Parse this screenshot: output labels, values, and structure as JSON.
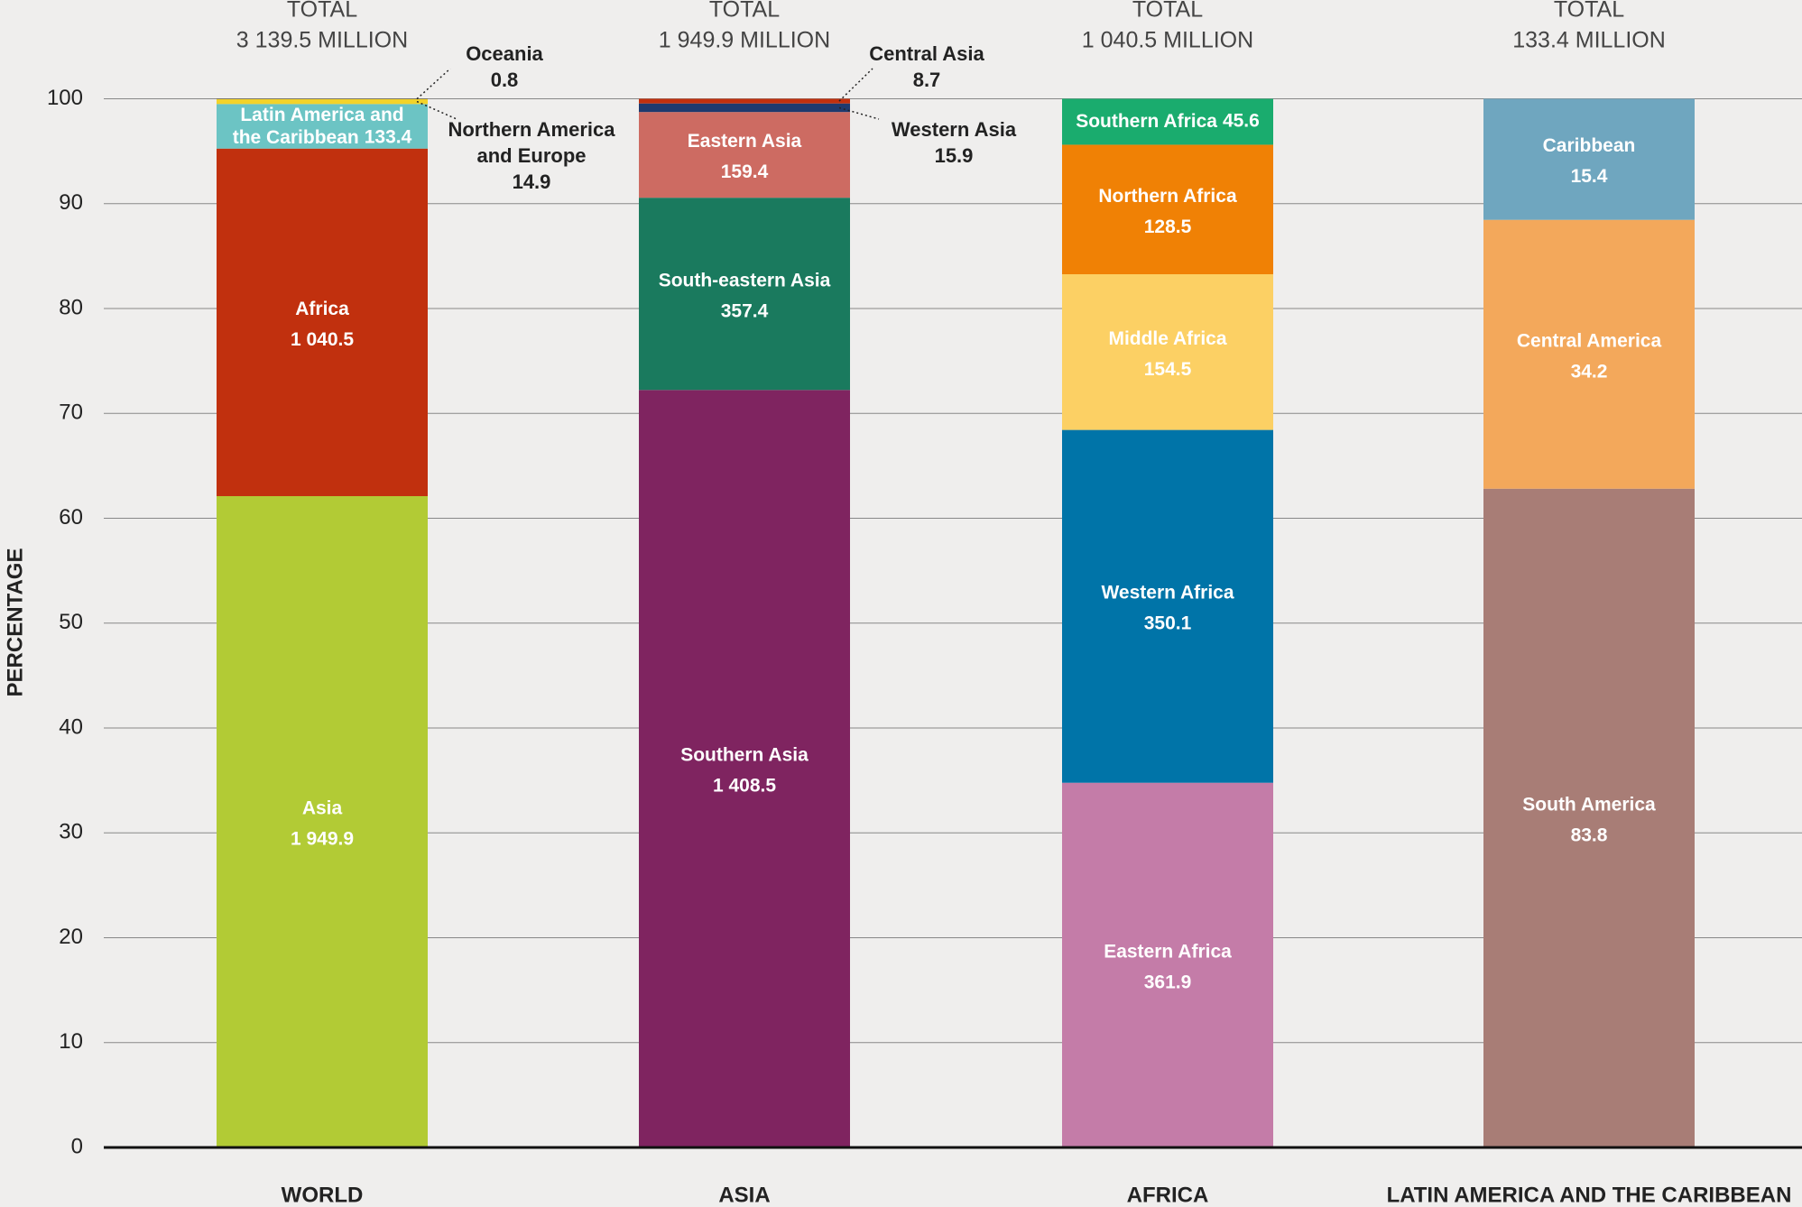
{
  "chart_data": {
    "type": "bar",
    "stacked": true,
    "percent": true,
    "y_label": "PERCENTAGE",
    "ylim": [
      0,
      100
    ],
    "yticks": [
      0,
      10,
      20,
      30,
      40,
      50,
      60,
      70,
      80,
      90,
      100
    ],
    "grid": true,
    "groups": [
      {
        "name": "WORLD",
        "total_heading": "TOTAL",
        "total_label": "3 139.5 MILLION",
        "segments": [
          {
            "name": "Asia",
            "color": "#b2cb35",
            "value": 1949.9,
            "value_label": "1 949.9"
          },
          {
            "name": "Africa",
            "color": "#c1300e",
            "value": 1040.5,
            "value_label": "1 040.5"
          },
          {
            "name": "Latin America and the Caribbean",
            "color": "#6cc4c4",
            "value": 133.4
          },
          {
            "name": "Northern America and Europe",
            "color": "#f3d32a",
            "value": 14.9
          },
          {
            "name": "Oceania",
            "color": "#3a3a3a",
            "value": 0.8
          }
        ]
      },
      {
        "name": "ASIA",
        "total_heading": "TOTAL",
        "total_label": "1 949.9 MILLION",
        "segments": [
          {
            "name": "Southern Asia",
            "color": "#7f2460",
            "value": 1408.5,
            "value_label": "1 408.5"
          },
          {
            "name": "South-eastern Asia",
            "color": "#1a7a5e",
            "value": 357.4
          },
          {
            "name": "Eastern Asia",
            "color": "#cd6b62",
            "value": 159.4
          },
          {
            "name": "Western Asia",
            "color": "#1e3a6e",
            "value": 15.9
          },
          {
            "name": "Central Asia",
            "color": "#c1300e",
            "value": 8.7
          }
        ]
      },
      {
        "name": "AFRICA",
        "total_heading": "TOTAL",
        "total_label": "1 040.5 MILLION",
        "segments": [
          {
            "name": "Eastern Africa",
            "color": "#c47ca8",
            "value": 361.9
          },
          {
            "name": "Western Africa",
            "color": "#0074a8",
            "value": 350.1
          },
          {
            "name": "Middle Africa",
            "color": "#fcd064",
            "value": 154.5
          },
          {
            "name": "Northern Africa",
            "color": "#f08105",
            "value": 128.5
          },
          {
            "name": "Southern Africa",
            "color": "#1aac6e",
            "value": 45.6
          }
        ]
      },
      {
        "name": "LATIN AMERICA AND THE CARIBBEAN",
        "total_heading": "TOTAL",
        "total_label": "133.4 MILLION",
        "segments": [
          {
            "name": "South America",
            "color": "#a87d76",
            "value": 83.8
          },
          {
            "name": "Central America",
            "color": "#f3a85b",
            "value": 34.2
          },
          {
            "name": "Caribbean",
            "color": "#6fa6bf",
            "value": 15.4
          }
        ]
      }
    ]
  }
}
